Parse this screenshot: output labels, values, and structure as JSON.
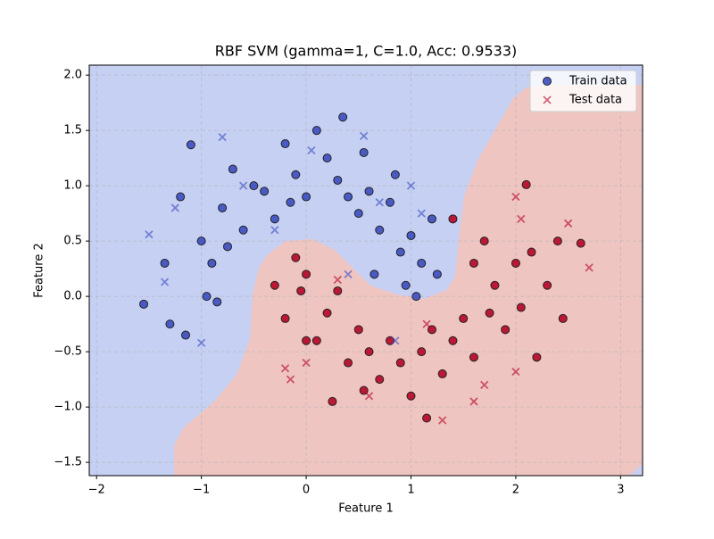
{
  "chart_data": {
    "type": "scatter",
    "title": "RBF SVM (gamma=1, C=1.0, Acc: 0.9533)",
    "xlabel": "Feature 1",
    "ylabel": "Feature 2",
    "xlim": [
      -2.07,
      3.21
    ],
    "ylim": [
      -1.62,
      2.09
    ],
    "xticks": [
      {
        "value": -2,
        "label": "−2"
      },
      {
        "value": -1,
        "label": "−1"
      },
      0,
      1,
      2,
      3
    ],
    "yticks": [
      {
        "value": -1.5,
        "label": "−1.5"
      },
      {
        "value": -1,
        "label": "−1.0"
      },
      {
        "value": -0.5,
        "label": "−0.5"
      },
      {
        "value": 0,
        "label": "0.0"
      },
      0.5,
      {
        "value": 1,
        "label": "1.0"
      },
      1.5,
      {
        "value": 2,
        "label": "2.0"
      }
    ],
    "grid": true,
    "legend": "upper right",
    "class_colors": [
      "#3b4cc0",
      "#b40426"
    ],
    "series": [
      {
        "name": "Train data",
        "marker": "o",
        "color": "#3b4cc0",
        "x": [
          -1.55,
          -1.2,
          -1.1,
          -1.0,
          -0.9,
          -0.8,
          -0.7,
          -0.6,
          -0.5,
          -0.4,
          -0.3,
          -0.2,
          -0.1,
          0,
          0.1,
          0.2,
          0.3,
          0.35,
          0.4,
          0.5,
          0.55,
          0.6,
          0.7,
          0.8,
          0.9,
          1.0,
          1.1,
          1.2,
          1.25,
          0.95,
          -1.15,
          -1.3,
          -0.85,
          -1.35,
          -0.95,
          -0.75,
          0.65,
          1.05,
          0.85,
          -0.15,
          -0.1,
          -0.3,
          -0.2,
          0,
          0.1,
          0.2,
          0.25,
          0.3,
          0.4,
          0.5,
          0.6,
          0.7,
          0.8,
          0.9,
          1.0,
          1.1,
          1.15,
          1.2,
          1.3,
          1.4,
          1.5,
          1.6,
          1.7,
          1.8,
          1.9,
          2.0,
          2.1,
          2.15,
          2.2,
          2.3,
          2.4,
          2.45,
          2.62,
          1.4,
          1.6,
          0.0,
          -0.05,
          0.55,
          1.75,
          2.05
        ],
        "y": [
          -0.07,
          0.9,
          1.37,
          0.5,
          0.3,
          0.8,
          1.15,
          0.6,
          1.0,
          0.95,
          0.7,
          1.38,
          1.1,
          0.9,
          1.5,
          1.25,
          1.05,
          1.62,
          0.9,
          0.75,
          1.3,
          0.95,
          0.6,
          0.85,
          0.4,
          0.55,
          0.3,
          0.7,
          0.2,
          0.1,
          -0.35,
          -0.25,
          -0.05,
          0.3,
          0.0,
          0.45,
          0.2,
          0.0,
          1.1,
          0.85,
          0.35,
          0.1,
          -0.2,
          0.2,
          -0.4,
          -0.15,
          -0.95,
          0.05,
          -0.6,
          -0.3,
          -0.5,
          -0.75,
          -0.4,
          -0.6,
          -0.9,
          -0.5,
          -1.1,
          -0.3,
          -0.7,
          -0.4,
          -0.2,
          -0.55,
          0.5,
          0.1,
          -0.3,
          0.3,
          1.01,
          0.4,
          -0.55,
          0.1,
          0.5,
          -0.2,
          0.48,
          0.7,
          0.3,
          -0.4,
          0.05,
          -0.85,
          -0.15,
          -0.1
        ],
        "classes": [
          0,
          0,
          0,
          0,
          0,
          0,
          0,
          0,
          0,
          0,
          0,
          0,
          0,
          0,
          0,
          0,
          0,
          0,
          0,
          0,
          0,
          0,
          0,
          0,
          0,
          0,
          0,
          0,
          0,
          0,
          0,
          0,
          0,
          0,
          0,
          0,
          0,
          0,
          0,
          0,
          1,
          1,
          1,
          1,
          1,
          1,
          1,
          1,
          1,
          1,
          1,
          1,
          1,
          1,
          1,
          1,
          1,
          1,
          1,
          1,
          1,
          1,
          1,
          1,
          1,
          1,
          1,
          1,
          1,
          1,
          1,
          1,
          1,
          1,
          1,
          1,
          1,
          1,
          1,
          1
        ]
      },
      {
        "name": "Test data",
        "marker": "x",
        "color": "#b40426",
        "x": [
          -1.5,
          -1.35,
          -1.0,
          -0.8,
          -0.6,
          0.05,
          0.55,
          0.7,
          1.0,
          1.1,
          0.4,
          -0.3,
          -1.25,
          0.85,
          -0.2,
          -0.15,
          0.0,
          0.3,
          1.3,
          1.6,
          2.0,
          2.05,
          2.5,
          2.7,
          1.7,
          2.0,
          0.6,
          1.15
        ],
        "y": [
          0.56,
          0.13,
          -0.42,
          1.44,
          1.0,
          1.32,
          1.45,
          0.85,
          1.0,
          0.75,
          0.2,
          0.6,
          0.8,
          -0.4,
          -0.65,
          -0.75,
          -0.6,
          0.15,
          -1.12,
          -0.95,
          0.9,
          0.7,
          0.66,
          0.26,
          -0.8,
          -0.68,
          -0.9,
          -0.25
        ],
        "classes": [
          0,
          0,
          0,
          0,
          0,
          0,
          0,
          0,
          0,
          0,
          0,
          0,
          0,
          0,
          1,
          1,
          1,
          1,
          1,
          1,
          1,
          1,
          1,
          1,
          1,
          1,
          1,
          1
        ]
      }
    ]
  }
}
